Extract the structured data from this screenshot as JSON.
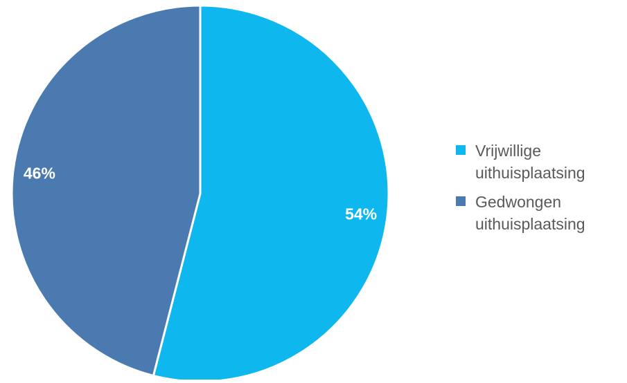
{
  "chart_data": {
    "type": "pie",
    "title": "",
    "categories": [
      "Vrijwillige uithuisplaatsing",
      "Gedwongen uithuisplaatsing"
    ],
    "values": [
      54,
      46
    ],
    "unit": "%",
    "data_labels": [
      "54%",
      "46%"
    ],
    "colors": [
      "#0EB8EE",
      "#4A7AB0"
    ],
    "start_angle_deg": 0,
    "direction": "clockwise",
    "legend_position": "right"
  },
  "legend": {
    "items": [
      {
        "label": "Vrijwillige\nuithuisplaatsing",
        "color": "#0EB8EE"
      },
      {
        "label": "Gedwongen\nuithuisplaatsing",
        "color": "#4A7AB0"
      }
    ]
  }
}
